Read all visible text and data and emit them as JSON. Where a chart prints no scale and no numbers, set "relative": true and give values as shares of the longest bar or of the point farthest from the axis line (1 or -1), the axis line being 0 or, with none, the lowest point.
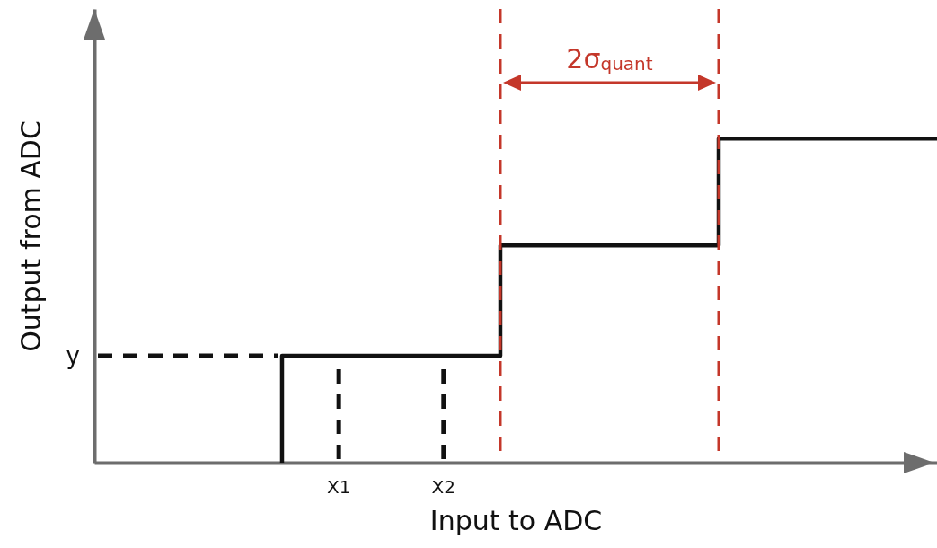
{
  "chart_data": {
    "type": "step",
    "relative": true,
    "xlabel": "Input to ADC",
    "ylabel": "Output from ADC",
    "categories": [
      null,
      null,
      null,
      null
    ],
    "values": [
      0,
      0.33,
      0.67,
      1
    ],
    "color": "#111111",
    "annotations": [
      "y",
      "X1",
      "X2",
      "2σ$_{quant}$"
    ]
  }
}
